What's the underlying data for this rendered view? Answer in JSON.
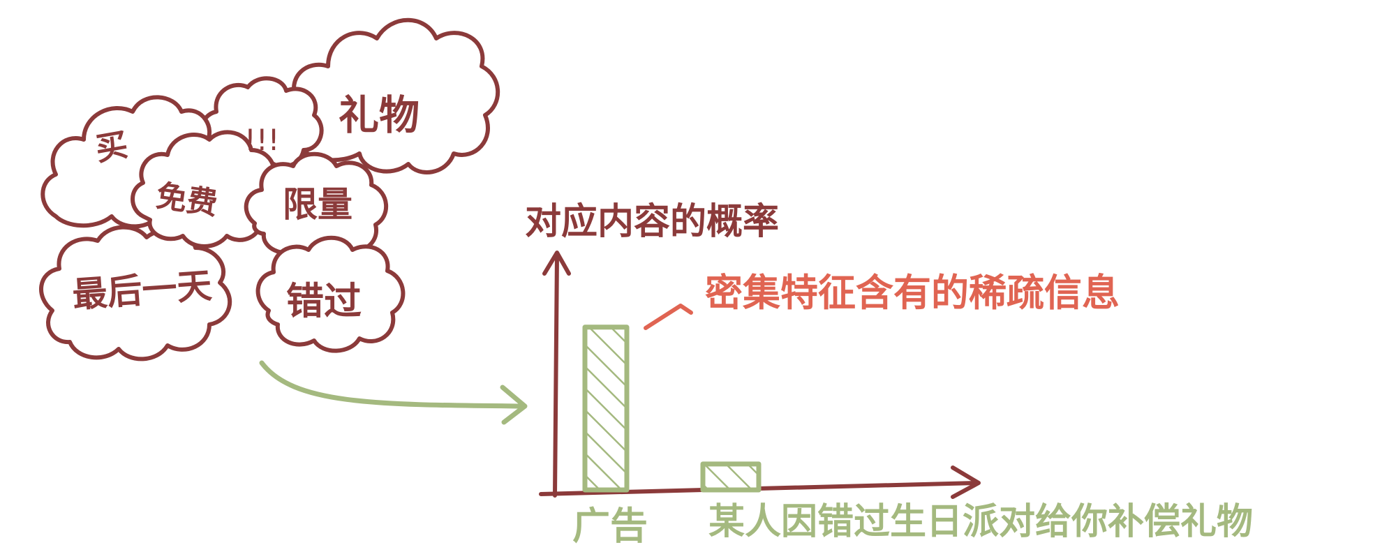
{
  "colors": {
    "outline": "#8b3a3a",
    "axis": "#8b3a3a",
    "bar": "#a4b97f",
    "highlight": "#e06452",
    "arrow": "#a4b97f",
    "background": "#ffffff"
  },
  "clouds": {
    "buy": "买",
    "free": "免费",
    "exclaim": "!!!",
    "gift": "礼物",
    "limited": "限量",
    "last_day": "最后一天",
    "miss": "错过"
  },
  "diagram": {
    "y_label": "对应内容的概率",
    "annotation": "密集特征含有的稀疏信息",
    "category_ad": "广告",
    "category_gift": "某人因错过生日派对给你补偿礼物"
  },
  "chart_data": {
    "type": "bar",
    "categories": [
      "广告",
      "某人因错过生日派对给你补偿礼物"
    ],
    "values": [
      0.88,
      0.14
    ],
    "ylabel": "对应内容的概率",
    "ylim": [
      0,
      1
    ],
    "annotation": "密集特征含有的稀疏信息"
  }
}
